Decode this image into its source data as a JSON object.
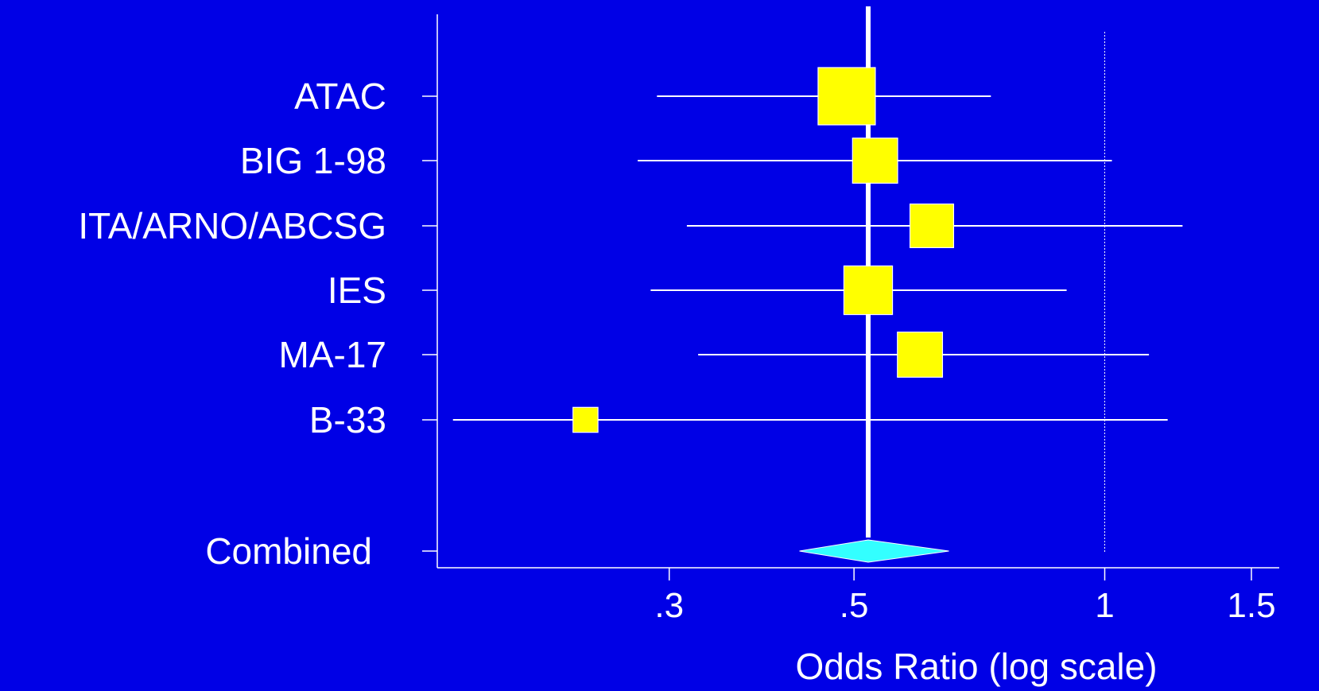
{
  "chart_data": {
    "type": "forest",
    "xlabel": "Odds Ratio (log scale)",
    "x_scale": "log",
    "xlim": [
      0.158,
      1.62
    ],
    "x_ticks": [
      {
        "value": 0.3,
        "label": ".3"
      },
      {
        "value": 0.5,
        "label": ".5"
      },
      {
        "value": 1,
        "label": "1"
      },
      {
        "value": 1.5,
        "label": "1.5"
      }
    ],
    "reference_line": 1,
    "studies": [
      {
        "name": "ATAC",
        "or": 0.49,
        "ci_low": 0.29,
        "ci_high": 0.73,
        "weight": 1.0
      },
      {
        "name": "BIG 1-98",
        "or": 0.53,
        "ci_low": 0.275,
        "ci_high": 1.02,
        "weight": 0.62
      },
      {
        "name": "ITA/ARNO/ABCSG",
        "or": 0.62,
        "ci_low": 0.315,
        "ci_high": 1.24,
        "weight": 0.58
      },
      {
        "name": "IES",
        "or": 0.52,
        "ci_low": 0.285,
        "ci_high": 0.9,
        "weight": 0.72
      },
      {
        "name": "MA-17",
        "or": 0.6,
        "ci_low": 0.325,
        "ci_high": 1.13,
        "weight": 0.62
      },
      {
        "name": "B-33",
        "or": 0.238,
        "ci_low": 0.165,
        "ci_high": 1.19,
        "weight": 0.19
      }
    ],
    "combined": {
      "name": "Combined",
      "or": 0.52,
      "ci_low": 0.43,
      "ci_high": 0.65
    },
    "colors": {
      "background": "#0000e6",
      "study_box": "#ffff00",
      "combined_diamond": "#33ffff",
      "lines": "#ffffff"
    }
  }
}
